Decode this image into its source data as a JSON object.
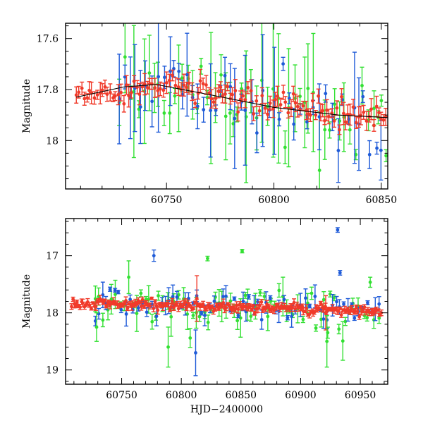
{
  "chart_data": [
    {
      "type": "scatter",
      "panel": "top",
      "title": "",
      "xlabel": "",
      "ylabel": "Magnitude",
      "xlim": [
        60703,
        60853
      ],
      "ylim": [
        17.54,
        18.19
      ],
      "y_inverted": true,
      "xticks": [
        60750,
        60800,
        60850
      ],
      "xtick_labels": [
        "60750",
        "60800",
        "60850"
      ],
      "yticks": [
        17.6,
        17.8,
        18.0
      ],
      "ytick_labels": [
        "17.6",
        "17.8",
        "18"
      ],
      "series": [
        {
          "name": "red",
          "color": "#f03a2a",
          "note": "dense sampling, ~17.8 rising to ~17.93"
        },
        {
          "name": "green",
          "color": "#33e033",
          "note": "large scatter, large error bars"
        },
        {
          "name": "blue",
          "color": "#1f5bd8",
          "note": "moderate scatter"
        }
      ],
      "trend_line": {
        "x": [
          60708,
          60730,
          60745,
          60770,
          60800,
          60830,
          60853
        ],
        "y": [
          17.83,
          17.79,
          17.78,
          17.82,
          17.87,
          17.9,
          17.91
        ]
      }
    },
    {
      "type": "scatter",
      "panel": "bottom",
      "title": "",
      "xlabel": "HJD−2400000",
      "ylabel": "Magnitude",
      "xlim": [
        60703,
        60973
      ],
      "ylim": [
        16.35,
        19.25
      ],
      "y_inverted": true,
      "xticks": [
        60750,
        60800,
        60850,
        60900,
        60950
      ],
      "xtick_labels": [
        "60750",
        "60800",
        "60850",
        "60900",
        "60950"
      ],
      "yticks": [
        17,
        18,
        19
      ],
      "ytick_labels": [
        "17",
        "18",
        "19"
      ],
      "series": [
        {
          "name": "red",
          "color": "#f03a2a",
          "note": "dense band ~17.8–18.0"
        },
        {
          "name": "green",
          "color": "#33e033",
          "note": "scatter 17.2–18.8"
        },
        {
          "name": "blue",
          "color": "#1f5bd8",
          "note": "scatter, outlier ~16.55 at 60931"
        }
      ],
      "highlight_points": [
        {
          "series": "blue",
          "x": 60931,
          "y": 16.55,
          "err": 0.04
        },
        {
          "series": "blue",
          "x": 60933,
          "y": 17.3,
          "err": 0.04
        },
        {
          "series": "blue",
          "x": 60777,
          "y": 17.0,
          "err": 0.1
        },
        {
          "series": "green",
          "x": 60851,
          "y": 16.92,
          "err": 0.03
        },
        {
          "series": "green",
          "x": 60822,
          "y": 17.05,
          "err": 0.04
        },
        {
          "series": "green",
          "x": 60729,
          "y": 18.25,
          "err": 0.25
        },
        {
          "series": "green",
          "x": 60789,
          "y": 18.6,
          "err": 0.35
        },
        {
          "series": "blue",
          "x": 60812,
          "y": 18.7,
          "err": 0.4
        },
        {
          "series": "red",
          "x": 60813,
          "y": 17.75,
          "err": 0.4
        },
        {
          "series": "red",
          "x": 60921,
          "y": 18.0,
          "err": 0.3
        },
        {
          "series": "green",
          "x": 60922,
          "y": 18.5,
          "err": 0.45
        }
      ]
    }
  ]
}
